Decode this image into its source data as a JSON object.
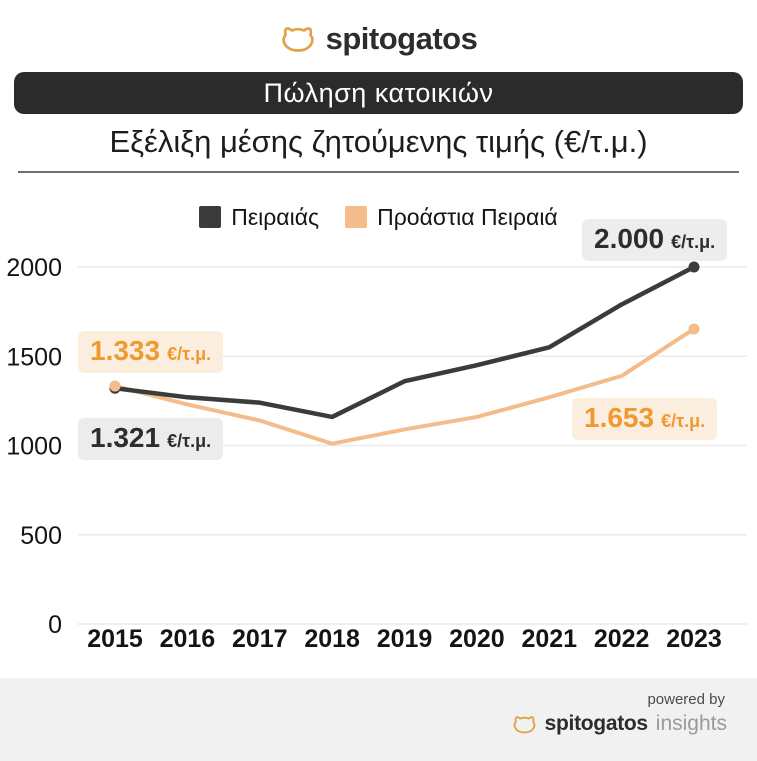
{
  "brand": {
    "logo_text": "spitogatos",
    "footer_powered_by": "powered by",
    "footer_brand": "spitogatos",
    "footer_suffix": "insights"
  },
  "header": {
    "banner": "Πώληση κατοικιών",
    "subtitle": "Εξέλιξη μέσης ζητούμενης τιμής (€/τ.μ.)"
  },
  "chart_data": {
    "type": "line",
    "title": "Εξέλιξη μέσης ζητούμενης τιμής (€/τ.μ.)",
    "x": [
      2015,
      2016,
      2017,
      2018,
      2019,
      2020,
      2021,
      2022,
      2023
    ],
    "series": [
      {
        "name": "Πειραιάς",
        "color": "#3b3b3b",
        "values": [
          1321,
          1270,
          1240,
          1160,
          1360,
          1450,
          1550,
          1790,
          2000
        ]
      },
      {
        "name": "Προάστια Πειραιά",
        "color": "#f3bc8a",
        "values": [
          1333,
          1230,
          1140,
          1010,
          1090,
          1160,
          1270,
          1390,
          1653
        ]
      }
    ],
    "ylim": [
      0,
      2000
    ],
    "yticks": [
      0,
      500,
      1000,
      1500,
      2000
    ],
    "grid": true,
    "legend_position": "top",
    "annotations": [
      {
        "series": "Προάστια Πειραιά",
        "x": 2015,
        "number": "1.333",
        "unit": "€/τ.μ."
      },
      {
        "series": "Πειραιάς",
        "x": 2015,
        "number": "1.321",
        "unit": "€/τ.μ."
      },
      {
        "series": "Πειραιάς",
        "x": 2023,
        "number": "2.000",
        "unit": "€/τ.μ."
      },
      {
        "series": "Προάστια Πειραιά",
        "x": 2023,
        "number": "1.653",
        "unit": "€/τ.μ."
      }
    ]
  },
  "colors": {
    "dark_series": "#3b3b3b",
    "orange_series": "#f3bc8a",
    "orange_text": "#f0992e",
    "banner_bg": "#2b2b2b",
    "annotation_gray_bg": "#ececec",
    "annotation_orange_bg": "#fceede",
    "footer_bg": "#f1f1f1",
    "logo_gold": "#dfa245",
    "gridline": "#eaeaea"
  }
}
